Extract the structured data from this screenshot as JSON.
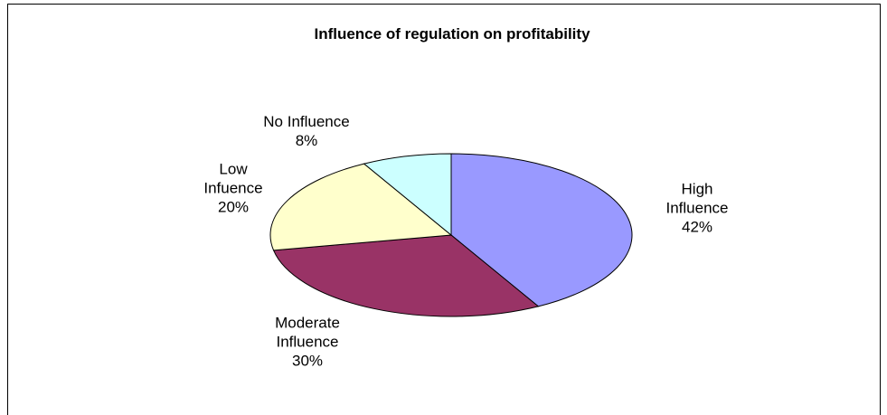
{
  "chart_data": {
    "type": "pie",
    "title": "Influence of regulation on profitability",
    "categories": [
      "High Influence",
      "Moderate Influence",
      "Low Infuence",
      "No Influence"
    ],
    "values": [
      42,
      30,
      20,
      8
    ],
    "value_labels": [
      "42%",
      "30%",
      "20%",
      "8%"
    ],
    "colors": [
      "#9999ff",
      "#993366",
      "#ffffcc",
      "#ccffff"
    ]
  }
}
